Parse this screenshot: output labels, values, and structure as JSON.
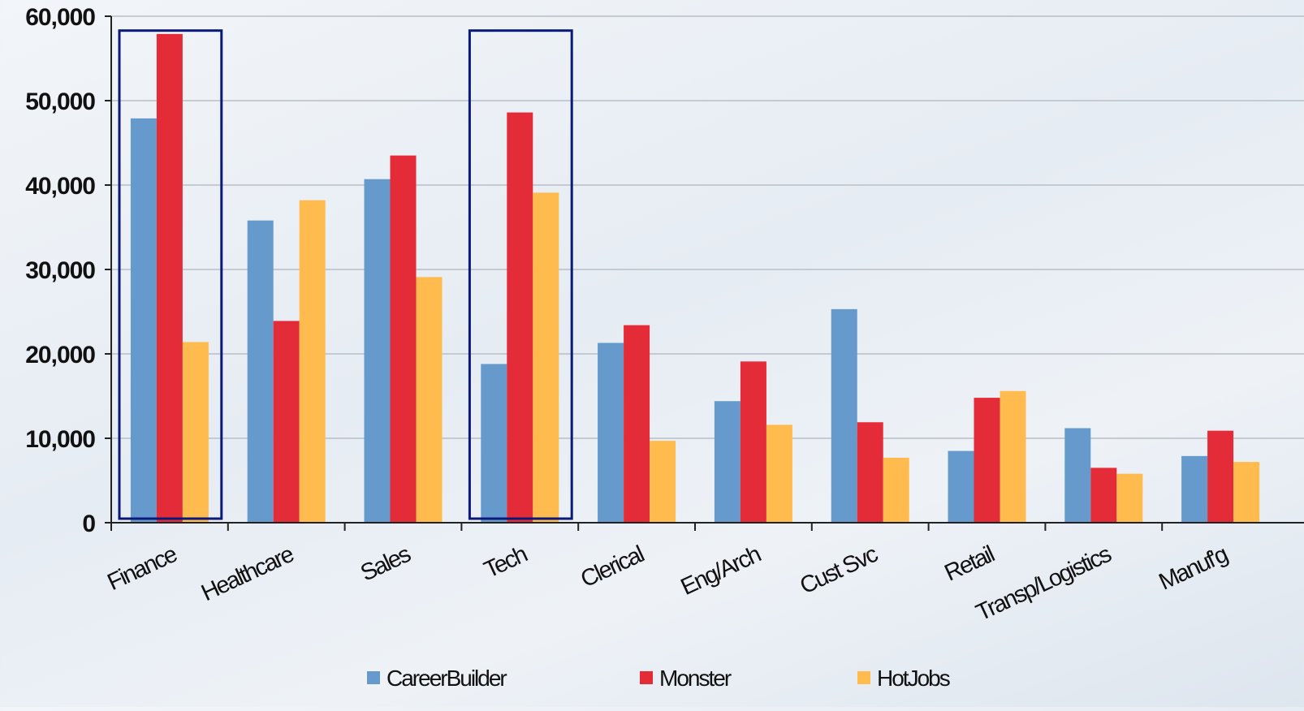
{
  "chart_data": {
    "type": "bar",
    "title": "",
    "xlabel": "",
    "ylabel": "",
    "ylim": [
      0,
      60000
    ],
    "y_ticks": [
      "0",
      "10,000",
      "20,000",
      "30,000",
      "40,000",
      "50,000",
      "60,000"
    ],
    "y_tick_values": [
      0,
      10000,
      20000,
      30000,
      40000,
      50000,
      60000
    ],
    "grid": true,
    "legend_position": "bottom",
    "categories": [
      "Finance",
      "Healthcare",
      "Sales",
      "Tech",
      "Clerical",
      "Eng/Arch",
      "Cust Svc",
      "Retail",
      "Transp/Logistics",
      "Manuf'g"
    ],
    "series": [
      {
        "name": "CareerBuilder",
        "color": "#6699cc",
        "values": [
          47900,
          35800,
          40700,
          18800,
          21300,
          14400,
          25300,
          8500,
          11200,
          7900
        ]
      },
      {
        "name": "Monster",
        "color": "#e32c37",
        "values": [
          57900,
          23900,
          43500,
          48600,
          23400,
          19100,
          11900,
          14800,
          6500,
          10900
        ]
      },
      {
        "name": "HotJobs",
        "color": "#ffbb4d",
        "values": [
          21400,
          38200,
          29100,
          39100,
          9700,
          11600,
          7700,
          15600,
          5800,
          7200
        ]
      }
    ],
    "highlighted_categories": [
      "Finance",
      "Tech"
    ],
    "highlight_color": "#0a1a7a"
  }
}
